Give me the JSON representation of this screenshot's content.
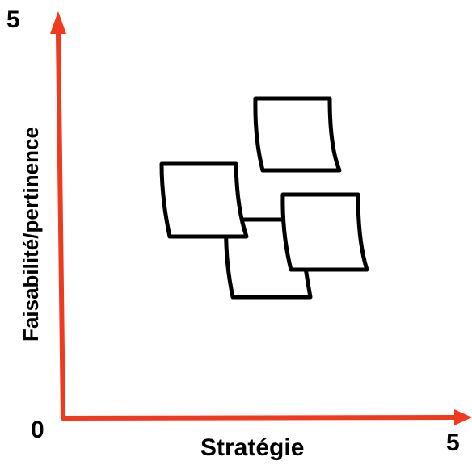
{
  "axes": {
    "x_label": "Stratégie",
    "y_label": "Faisabilité/pertinence",
    "origin_label": "0",
    "x_max_label": "5",
    "y_max_label": "5",
    "axis_color": "#f0391d"
  },
  "notes": [
    {
      "name": "sticky-note-1"
    },
    {
      "name": "sticky-note-2"
    },
    {
      "name": "sticky-note-3"
    },
    {
      "name": "sticky-note-4"
    }
  ]
}
